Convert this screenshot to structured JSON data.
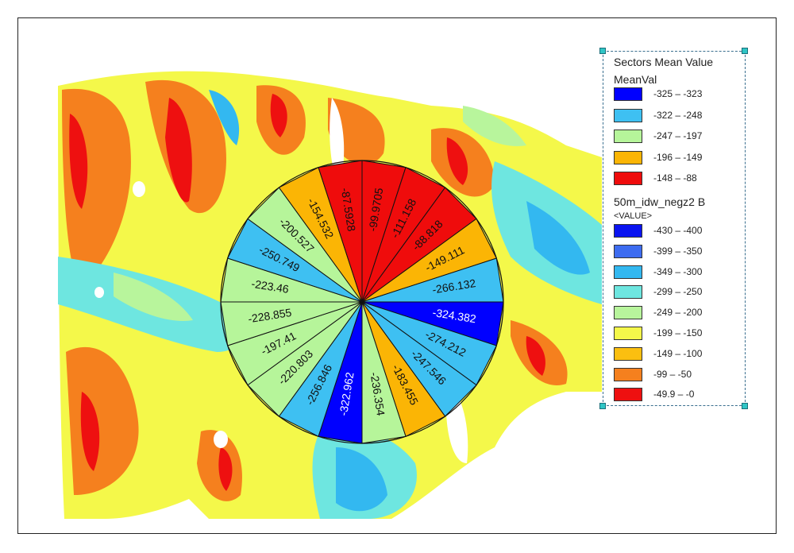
{
  "legend": {
    "sectors_title": "Sectors Mean Value",
    "sectors_field": "MeanVal",
    "sector_classes": [
      {
        "label": "-325 – -323",
        "color": "#0000ff"
      },
      {
        "label": "-322 – -248",
        "color": "#3ec0f2"
      },
      {
        "label": "-247 – -197",
        "color": "#b6f59a"
      },
      {
        "label": "-196 – -149",
        "color": "#fbb505"
      },
      {
        "label": "-148 – -88",
        "color": "#ef0c0c"
      }
    ],
    "raster_title": "50m_idw_negz2 B",
    "raster_field": "<VALUE>",
    "raster_classes": [
      {
        "label": "-430 – -400",
        "color": "#0a14f0"
      },
      {
        "label": "-399 – -350",
        "color": "#3d6cf0"
      },
      {
        "label": "-349 – -300",
        "color": "#33b8f0"
      },
      {
        "label": "-299 – -250",
        "color": "#6ee6e0"
      },
      {
        "label": "-249 – -200",
        "color": "#b8f59c"
      },
      {
        "label": "-199 – -150",
        "color": "#f4f84a"
      },
      {
        "label": "-149 – -100",
        "color": "#fbbf10"
      },
      {
        "label": "-99 – -50",
        "color": "#f5801e"
      },
      {
        "label": "-49.9 – -0",
        "color": "#ee1010"
      }
    ]
  },
  "sectors": [
    {
      "label": "-99.9705",
      "value": -99.9705
    },
    {
      "label": "-111.158",
      "value": -111.158
    },
    {
      "label": "-88.818",
      "value": -88.818
    },
    {
      "label": "-149.111",
      "value": -149.111
    },
    {
      "label": "-266.132",
      "value": -266.132
    },
    {
      "label": "-324.382",
      "value": -324.382
    },
    {
      "label": "-274.212",
      "value": -274.212
    },
    {
      "label": "-247.546",
      "value": -247.546
    },
    {
      "label": "-183.455",
      "value": -183.455
    },
    {
      "label": "-236.354",
      "value": -236.354
    },
    {
      "label": "-322.962",
      "value": -322.962
    },
    {
      "label": "-256.846",
      "value": -256.846
    },
    {
      "label": "-220.803",
      "value": -220.803
    },
    {
      "label": "-197.41",
      "value": -197.41
    },
    {
      "label": "-228.855",
      "value": -228.855
    },
    {
      "label": "-223.46",
      "value": -223.46
    },
    {
      "label": "-250.749",
      "value": -250.749
    },
    {
      "label": "-200.527",
      "value": -200.527
    },
    {
      "label": "-154.532",
      "value": -154.532
    },
    {
      "label": "-87.5928",
      "value": -87.5928
    }
  ]
}
